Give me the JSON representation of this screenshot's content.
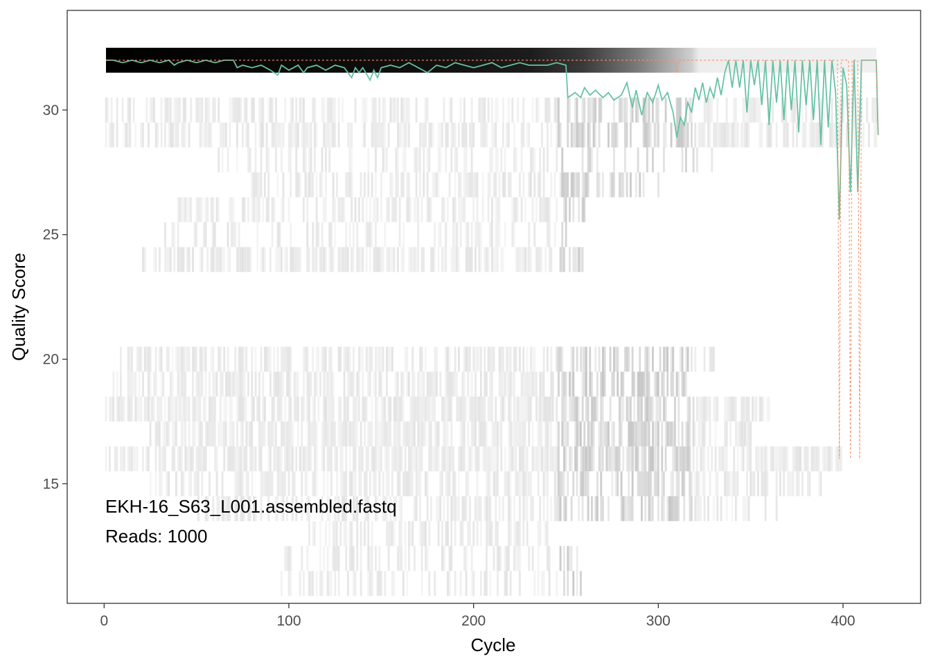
{
  "chart_data": {
    "type": "heatmap",
    "title": "",
    "xlabel": "Cycle",
    "ylabel": "Quality Score",
    "xlim": [
      -20,
      442
    ],
    "ylim": [
      10.2,
      34.0
    ],
    "grid": false,
    "x_ticks": [
      0,
      100,
      200,
      300,
      400
    ],
    "y_ticks": [
      15,
      20,
      25,
      30
    ],
    "annotation": {
      "file": "EKH-16_S63_L001.assembled.fastq",
      "reads_text": "Reads:  1000"
    },
    "series": [
      {
        "style": "mean",
        "color": "#66C2A5",
        "points": [
          [
            1,
            32.0
          ],
          [
            5,
            32.0
          ],
          [
            10,
            31.9
          ],
          [
            15,
            32.0
          ],
          [
            20,
            31.9
          ],
          [
            25,
            32.0
          ],
          [
            30,
            31.9
          ],
          [
            35,
            32.0
          ],
          [
            38,
            31.8
          ],
          [
            40,
            31.9
          ],
          [
            45,
            32.0
          ],
          [
            50,
            31.9
          ],
          [
            55,
            32.0
          ],
          [
            60,
            31.9
          ],
          [
            65,
            32.0
          ],
          [
            70,
            32.0
          ],
          [
            72,
            31.7
          ],
          [
            75,
            31.8
          ],
          [
            80,
            31.7
          ],
          [
            85,
            31.8
          ],
          [
            90,
            31.6
          ],
          [
            94,
            31.4
          ],
          [
            96,
            31.8
          ],
          [
            100,
            31.6
          ],
          [
            105,
            31.8
          ],
          [
            108,
            31.5
          ],
          [
            110,
            31.7
          ],
          [
            115,
            31.8
          ],
          [
            120,
            31.6
          ],
          [
            125,
            31.8
          ],
          [
            130,
            31.7
          ],
          [
            134,
            31.3
          ],
          [
            136,
            31.7
          ],
          [
            138,
            31.5
          ],
          [
            140,
            31.7
          ],
          [
            144,
            31.2
          ],
          [
            146,
            31.6
          ],
          [
            148,
            31.3
          ],
          [
            150,
            31.7
          ],
          [
            155,
            31.8
          ],
          [
            160,
            31.7
          ],
          [
            165,
            31.9
          ],
          [
            170,
            31.7
          ],
          [
            175,
            31.5
          ],
          [
            180,
            31.8
          ],
          [
            185,
            31.7
          ],
          [
            190,
            31.9
          ],
          [
            195,
            31.8
          ],
          [
            200,
            31.7
          ],
          [
            205,
            31.8
          ],
          [
            210,
            31.9
          ],
          [
            215,
            31.7
          ],
          [
            220,
            31.8
          ],
          [
            225,
            31.9
          ],
          [
            230,
            31.8
          ],
          [
            235,
            31.8
          ],
          [
            240,
            31.8
          ],
          [
            245,
            31.9
          ],
          [
            250,
            31.8
          ],
          [
            251,
            30.5
          ],
          [
            255,
            30.7
          ],
          [
            258,
            30.5
          ],
          [
            260,
            30.9
          ],
          [
            263,
            30.6
          ],
          [
            266,
            30.8
          ],
          [
            270,
            30.5
          ],
          [
            273,
            30.7
          ],
          [
            276,
            30.4
          ],
          [
            280,
            30.6
          ],
          [
            283,
            31.1
          ],
          [
            286,
            30.1
          ],
          [
            288,
            30.8
          ],
          [
            291,
            29.8
          ],
          [
            294,
            30.7
          ],
          [
            297,
            30.3
          ],
          [
            300,
            31.0
          ],
          [
            302,
            30.4
          ],
          [
            305,
            30.7
          ],
          [
            308,
            29.9
          ],
          [
            310,
            28.9
          ],
          [
            312,
            29.7
          ],
          [
            314,
            29.4
          ],
          [
            316,
            30.3
          ],
          [
            318,
            29.9
          ],
          [
            320,
            30.9
          ],
          [
            322,
            30.4
          ],
          [
            324,
            31.1
          ],
          [
            326,
            30.3
          ],
          [
            328,
            30.9
          ],
          [
            330,
            30.5
          ],
          [
            332,
            31.3
          ],
          [
            334,
            30.6
          ],
          [
            336,
            31.5
          ],
          [
            338,
            32.0
          ],
          [
            340,
            30.9
          ],
          [
            342,
            32.0
          ],
          [
            344,
            30.9
          ],
          [
            346,
            32.0
          ],
          [
            348,
            29.9
          ],
          [
            350,
            32.0
          ],
          [
            352,
            31.0
          ],
          [
            354,
            32.0
          ],
          [
            356,
            30.2
          ],
          [
            358,
            32.0
          ],
          [
            360,
            29.4
          ],
          [
            362,
            32.0
          ],
          [
            364,
            30.3
          ],
          [
            366,
            32.0
          ],
          [
            368,
            29.6
          ],
          [
            370,
            32.0
          ],
          [
            372,
            30.0
          ],
          [
            374,
            32.0
          ],
          [
            376,
            29.1
          ],
          [
            378,
            32.0
          ],
          [
            380,
            30.2
          ],
          [
            382,
            32.0
          ],
          [
            384,
            29.6
          ],
          [
            386,
            32.0
          ],
          [
            388,
            28.6
          ],
          [
            390,
            32.0
          ],
          [
            392,
            29.3
          ],
          [
            394,
            32.0
          ],
          [
            396,
            30.7
          ],
          [
            398,
            25.6
          ],
          [
            400,
            31.7
          ],
          [
            402,
            31.0
          ],
          [
            404,
            26.7
          ],
          [
            406,
            32.0
          ],
          [
            408,
            26.7
          ],
          [
            410,
            32.0
          ],
          [
            412,
            32.0
          ],
          [
            414,
            32.0
          ],
          [
            416,
            32.0
          ],
          [
            418,
            32.0
          ],
          [
            419,
            29.0
          ]
        ]
      },
      {
        "style": "median",
        "color": "#FC8D62",
        "points": [
          [
            1,
            32.0
          ],
          [
            309,
            32.0
          ],
          [
            310,
            31.5
          ],
          [
            311,
            32.0
          ],
          [
            397,
            32.0
          ],
          [
            398,
            16.0
          ],
          [
            399,
            32.0
          ],
          [
            403,
            32.0
          ],
          [
            404,
            16.0
          ],
          [
            405,
            32.0
          ],
          [
            408,
            32.0
          ],
          [
            409,
            16.0
          ],
          [
            410,
            32.0
          ],
          [
            418,
            32.0
          ],
          [
            419,
            29.0
          ]
        ]
      }
    ]
  }
}
